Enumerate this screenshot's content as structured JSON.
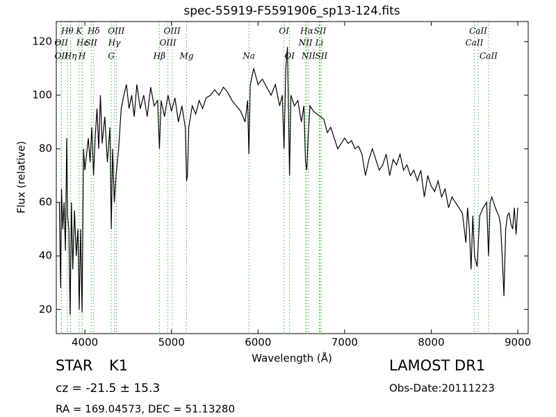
{
  "chart_data": {
    "type": "line",
    "title": "spec-55919-F5591906_sp13-124.fits",
    "xlabel": "Wavelength (Å)",
    "ylabel": "Flux (relative)",
    "xlim": [
      3670,
      9120
    ],
    "ylim": [
      11,
      127.5
    ],
    "xticks": [
      4000,
      5000,
      6000,
      7000,
      8000,
      9000
    ],
    "yticks": [
      20,
      40,
      60,
      80,
      100,
      120
    ],
    "grid": false,
    "x": [
      3705,
      3720,
      3730,
      3745,
      3760,
      3775,
      3790,
      3800,
      3815,
      3830,
      3845,
      3860,
      3880,
      3900,
      3920,
      3935,
      3950,
      3968,
      3985,
      4000,
      4020,
      4040,
      4060,
      4080,
      4100,
      4120,
      4140,
      4160,
      4180,
      4200,
      4230,
      4260,
      4290,
      4305,
      4320,
      4340,
      4360,
      4390,
      4420,
      4450,
      4480,
      4510,
      4540,
      4570,
      4600,
      4640,
      4680,
      4720,
      4760,
      4800,
      4840,
      4861,
      4880,
      4920,
      4960,
      5000,
      5040,
      5080,
      5120,
      5160,
      5175,
      5185,
      5200,
      5240,
      5280,
      5320,
      5360,
      5400,
      5450,
      5500,
      5550,
      5600,
      5650,
      5700,
      5750,
      5800,
      5850,
      5880,
      5894,
      5910,
      5950,
      6000,
      6050,
      6100,
      6150,
      6200,
      6250,
      6280,
      6300,
      6320,
      6340,
      6364,
      6380,
      6420,
      6460,
      6500,
      6530,
      6548,
      6563,
      6580,
      6600,
      6640,
      6680,
      6720,
      6760,
      6800,
      6840,
      6880,
      6920,
      6960,
      7000,
      7040,
      7080,
      7120,
      7160,
      7200,
      7240,
      7280,
      7320,
      7360,
      7400,
      7440,
      7480,
      7520,
      7560,
      7600,
      7640,
      7680,
      7720,
      7760,
      7800,
      7840,
      7880,
      7920,
      7960,
      8000,
      8040,
      8080,
      8120,
      8160,
      8200,
      8240,
      8280,
      8320,
      8360,
      8400,
      8420,
      8440,
      8460,
      8480,
      8500,
      8530,
      8560,
      8600,
      8640,
      8662,
      8680,
      8700,
      8740,
      8780,
      8800,
      8820,
      8840,
      8860,
      8880,
      8900,
      8920,
      8940,
      8960,
      8980,
      9000
    ],
    "series": [
      {
        "color": "#000000",
        "values": [
          60,
          28,
          65,
          50,
          60,
          42,
          84,
          55,
          50,
          18,
          60,
          35,
          57,
          40,
          50,
          20,
          50,
          19,
          80,
          72,
          78,
          84,
          75,
          88,
          70,
          85,
          95,
          80,
          100,
          82,
          92,
          75,
          88,
          50,
          80,
          60,
          70,
          80,
          95,
          100,
          104,
          95,
          100,
          92,
          104,
          95,
          100,
          92,
          103,
          96,
          98,
          80,
          98,
          92,
          100,
          94,
          99,
          90,
          96,
          88,
          68,
          70,
          88,
          96,
          93,
          98,
          95,
          99,
          100,
          102,
          100,
          103,
          101,
          98,
          96,
          94,
          90,
          98,
          78,
          104,
          110,
          104,
          106,
          103,
          100,
          104,
          96,
          100,
          80,
          110,
          118,
          70,
          100,
          96,
          98,
          90,
          96,
          75,
          72,
          85,
          96,
          94,
          93,
          92,
          91,
          86,
          88,
          84,
          80,
          82,
          84,
          82,
          83,
          80,
          81,
          78,
          70,
          76,
          80,
          76,
          72,
          74,
          78,
          70,
          76,
          74,
          78,
          72,
          74,
          70,
          72,
          68,
          72,
          62,
          70,
          66,
          64,
          68,
          62,
          65,
          58,
          62,
          60,
          58,
          56,
          45,
          58,
          50,
          35,
          55,
          40,
          36,
          55,
          58,
          60,
          40,
          60,
          62,
          58,
          55,
          52,
          40,
          25,
          50,
          55,
          56,
          52,
          50,
          58,
          48,
          58
        ]
      }
    ],
    "line_color": "#33bb33",
    "lines": [
      {
        "name": "Hθ",
        "wavelength": 3798
      },
      {
        "name": "K",
        "wavelength": 3934
      },
      {
        "name": "Hδ",
        "wavelength": 4102
      },
      {
        "name": "OIII",
        "wavelength": 4363
      },
      {
        "name": "OIII",
        "wavelength": 5007
      },
      {
        "name": "OI",
        "wavelength": 6300
      },
      {
        "name": "Hα",
        "wavelength": 6563
      },
      {
        "name": "SII",
        "wavelength": 6716
      },
      {
        "name": "CaII",
        "wavelength": 8542
      },
      {
        "name": "OII",
        "wavelength": 3727
      },
      {
        "name": "Hε",
        "wavelength": 3970
      },
      {
        "name": "SII",
        "wavelength": 4072
      },
      {
        "name": "Hγ",
        "wavelength": 4341
      },
      {
        "name": "OIII",
        "wavelength": 4959
      },
      {
        "name": "NII",
        "wavelength": 6548
      },
      {
        "name": "Li",
        "wavelength": 6708
      },
      {
        "name": "CaII",
        "wavelength": 8498
      },
      {
        "name": "OII",
        "wavelength": 3729
      },
      {
        "name": "Hη",
        "wavelength": 3835
      },
      {
        "name": "H",
        "wavelength": 3968
      },
      {
        "name": "G",
        "wavelength": 4305
      },
      {
        "name": "Hβ",
        "wavelength": 4861
      },
      {
        "name": "Mg",
        "wavelength": 5175
      },
      {
        "name": "Na",
        "wavelength": 5894
      },
      {
        "name": "OI",
        "wavelength": 6364
      },
      {
        "name": "NII",
        "wavelength": 6583
      },
      {
        "name": "SII",
        "wavelength": 6731
      },
      {
        "name": "CaII",
        "wavelength": 8662
      }
    ]
  },
  "info": {
    "class": "STAR",
    "subclass": "K1",
    "cz": "cz = -21.5 ± 15.3",
    "coords": "RA = 169.04573, DEC = 51.13280",
    "survey": "LAMOST DR1",
    "date": "Obs-Date:20111223"
  }
}
